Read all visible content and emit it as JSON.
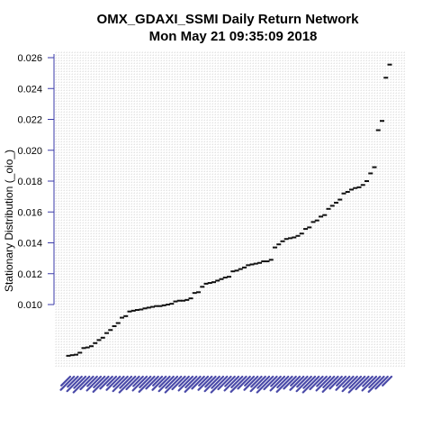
{
  "chart_data": {
    "type": "scatter",
    "title": "OMX_GDAXI_SSMI  Daily Return Network",
    "subtitle": "Mon May 21 09:35:09 2018",
    "xlabel": "",
    "ylabel": "Stationary Distribution (_oio_)",
    "ylim": [
      0.0065,
      0.0265
    ],
    "yticks": [
      0.01,
      0.012,
      0.014,
      0.016,
      0.018,
      0.02,
      0.022,
      0.024,
      0.026
    ],
    "ytick_labels": [
      "0.010",
      "0.012",
      "0.014",
      "0.016",
      "0.018",
      "0.020",
      "0.022",
      "0.024",
      "0.026"
    ],
    "grid": true,
    "x_tick_labels_legible": false,
    "series": [
      {
        "values": [
          0.00668,
          0.00672,
          0.00675,
          0.00688,
          0.00718,
          0.00722,
          0.0073,
          0.0075,
          0.0077,
          0.00785,
          0.00815,
          0.00835,
          0.0086,
          0.0088,
          0.00915,
          0.00925,
          0.00955,
          0.0096,
          0.00965,
          0.00968,
          0.00975,
          0.0098,
          0.00985,
          0.0099,
          0.0099,
          0.00995,
          0.01,
          0.01005,
          0.0102,
          0.01025,
          0.01025,
          0.0103,
          0.0104,
          0.01075,
          0.0108,
          0.01115,
          0.01135,
          0.0114,
          0.01145,
          0.01155,
          0.01165,
          0.01175,
          0.0118,
          0.01215,
          0.0122,
          0.0123,
          0.0124,
          0.01255,
          0.0126,
          0.01265,
          0.0127,
          0.0128,
          0.0128,
          0.0129,
          0.0137,
          0.0139,
          0.0141,
          0.01425,
          0.0143,
          0.01435,
          0.01445,
          0.0146,
          0.0149,
          0.015,
          0.01535,
          0.01545,
          0.0157,
          0.0158,
          0.0162,
          0.0164,
          0.0166,
          0.0168,
          0.0172,
          0.0173,
          0.01745,
          0.01755,
          0.0176,
          0.01775,
          0.018,
          0.0185,
          0.0189,
          0.0213,
          0.0219,
          0.0247,
          0.02555
        ]
      }
    ]
  }
}
